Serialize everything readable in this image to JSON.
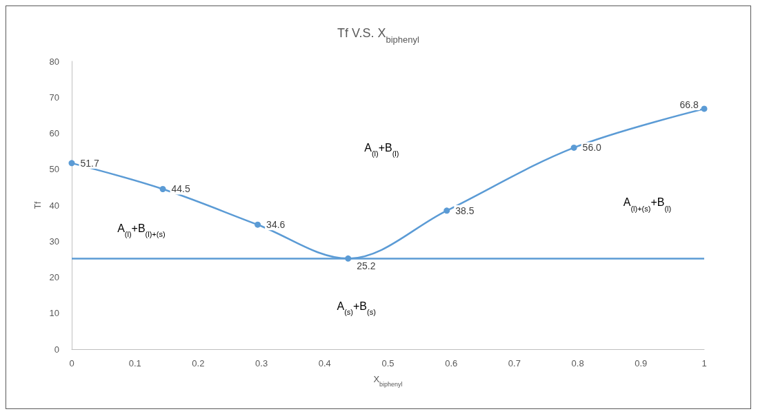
{
  "chart_data": {
    "type": "line",
    "title": "Tf V.S. X$_{biphenyl}$",
    "xlabel": "X$_{biphenyl}$",
    "ylabel": "Tf",
    "x": [
      0,
      0.144,
      0.294,
      0.437,
      0.593,
      0.794,
      1
    ],
    "series": [
      {
        "color": "#5b9bd5",
        "values": [
          51.7,
          44.5,
          34.6,
          25.2,
          38.5,
          56.0,
          66.8
        ],
        "value_labels": [
          "51.7",
          "44.5",
          "34.6",
          "25.2",
          "38.5",
          "56.0",
          "66.8"
        ]
      }
    ],
    "xlim": [
      0,
      1
    ],
    "xticks": [
      0,
      0.1,
      0.2,
      0.3,
      0.4,
      0.5,
      0.6,
      0.7,
      0.8,
      0.9,
      1
    ],
    "ylim": [
      0,
      80
    ],
    "yticks": [
      0,
      10,
      20,
      30,
      40,
      50,
      60,
      70,
      80
    ],
    "ref_lines": [
      {
        "axis": "y",
        "value": 25.2,
        "color": "#5b9bd5"
      }
    ],
    "annotations": [
      "A$_{(l)}$+B$_{(l)}$",
      "A$_{(l)}$+B$_{(l)+(s)}$",
      "A$_{(l)+(s)}$+B$_{(l)}$",
      "A$_{(s)}$+B$_{(s)}$"
    ],
    "marker": "circle",
    "grid": false
  }
}
